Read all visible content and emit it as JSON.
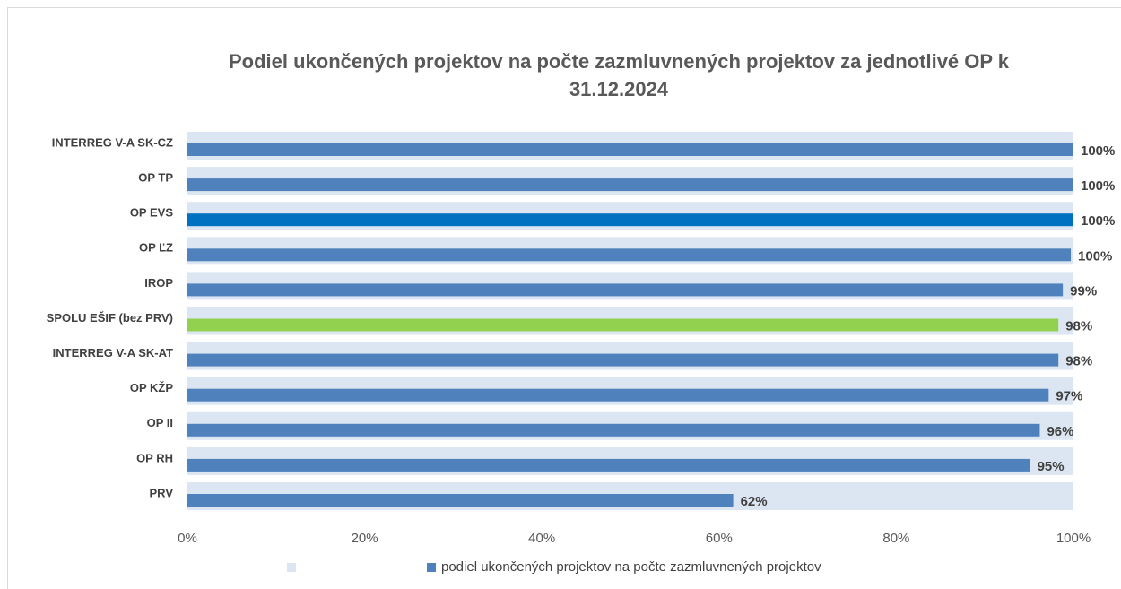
{
  "chart_data": {
    "type": "bar",
    "orientation": "horizontal",
    "title": [
      "Podiel ukončených projektov na počte zazmluvnených projektov za jednotlivé OP k",
      "31.12.2024"
    ],
    "categories": [
      "INTERREG V-A SK-CZ",
      "OP TP",
      "OP EVS",
      "OP ĽZ",
      "IROP",
      "SPOLU EŠIF  (bez PRV)",
      "INTERREG V-A SK-AT",
      "OP KŽP",
      "OP II",
      "OP RH",
      "PRV"
    ],
    "series": [
      {
        "color": "#dce6f2",
        "values": [
          100,
          100,
          100,
          100,
          100,
          100,
          100,
          100,
          100,
          100,
          100
        ]
      },
      {
        "name": "podiel ukončených projektov na počte zazmluvnených projektov",
        "color": "#4f81bd",
        "colors": [
          "#4f81bd",
          "#4f81bd",
          "#0070c0",
          "#4f81bd",
          "#4f81bd",
          "#92d050",
          "#4f81bd",
          "#4f81bd",
          "#4f81bd",
          "#4f81bd",
          "#4f81bd"
        ],
        "values": [
          100,
          100,
          100,
          99.7,
          98.8,
          98.3,
          98.3,
          97.2,
          96.2,
          95.1,
          61.6
        ],
        "value_labels": [
          "100%",
          "100%",
          "100%",
          "100%",
          "99%",
          "98%",
          "98%",
          "97%",
          "96%",
          "95%",
          "62%"
        ]
      }
    ],
    "xlim": [
      0,
      100
    ],
    "xticks": [
      {
        "value": 0,
        "label": "0%"
      },
      {
        "value": 20,
        "label": "20%"
      },
      {
        "value": 40,
        "label": "40%"
      },
      {
        "value": 60,
        "label": "60%"
      },
      {
        "value": 80,
        "label": "80%"
      },
      {
        "value": 100,
        "label": "100%"
      }
    ],
    "legend": "bottom",
    "grid": false
  }
}
